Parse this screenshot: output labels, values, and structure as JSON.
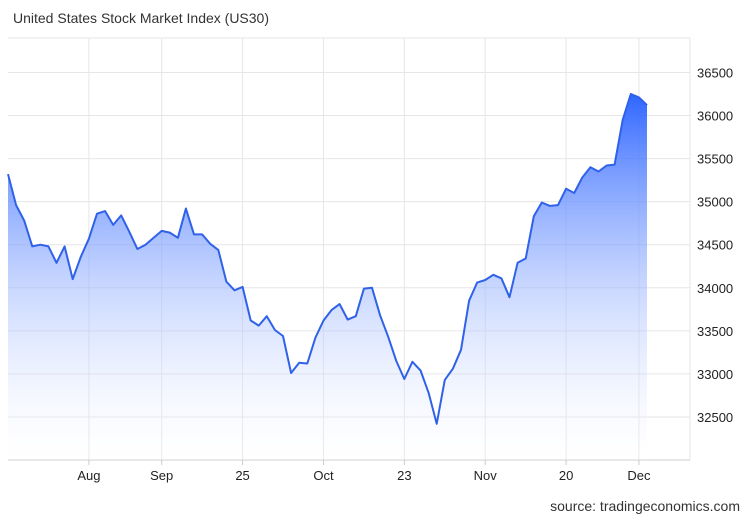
{
  "title": "United States Stock Market Index (US30)",
  "source": "source: tradingeconomics.com",
  "colors": {
    "line": "#2f62e8",
    "fill_top": "#2f66ff",
    "fill_bottom": "#ffffff",
    "grid": "#e6e6e6"
  },
  "chart_data": {
    "type": "area",
    "title": "United States Stock Market Index (US30)",
    "xlabel": "",
    "ylabel": "",
    "ylim": [
      32000,
      36900
    ],
    "y_ticks": [
      32500,
      33000,
      33500,
      34000,
      34500,
      35000,
      35500,
      36000,
      36500
    ],
    "x_ticks": [
      {
        "label": "Aug",
        "index": 10
      },
      {
        "label": "Sep",
        "index": 19
      },
      {
        "label": "25",
        "index": 29
      },
      {
        "label": "Oct",
        "index": 39
      },
      {
        "label": "23",
        "index": 49
      },
      {
        "label": "Nov",
        "index": 59
      },
      {
        "label": "20",
        "index": 69
      },
      {
        "label": "Dec",
        "index": 78
      }
    ],
    "grid": true,
    "series": [
      {
        "values": [
          35320,
          34960,
          34780,
          34480,
          34500,
          34480,
          34290,
          34480,
          34100,
          34360,
          34570,
          34860,
          34890,
          34730,
          34840,
          34650,
          34450,
          34500,
          34580,
          34660,
          34640,
          34580,
          34920,
          34620,
          34620,
          34510,
          34440,
          34070,
          33970,
          34010,
          33620,
          33560,
          33670,
          33510,
          33440,
          33010,
          33130,
          33120,
          33420,
          33620,
          33740,
          33810,
          33630,
          33670,
          33990,
          34000,
          33680,
          33430,
          33150,
          32940,
          33140,
          33040,
          32780,
          32420,
          32930,
          33060,
          33280,
          33850,
          34060,
          34090,
          34150,
          34110,
          33890,
          34290,
          34340,
          34830,
          34990,
          34950,
          34960,
          35150,
          35100,
          35280,
          35400,
          35350,
          35420,
          35430,
          35950,
          36250,
          36210,
          36120
        ]
      }
    ]
  }
}
